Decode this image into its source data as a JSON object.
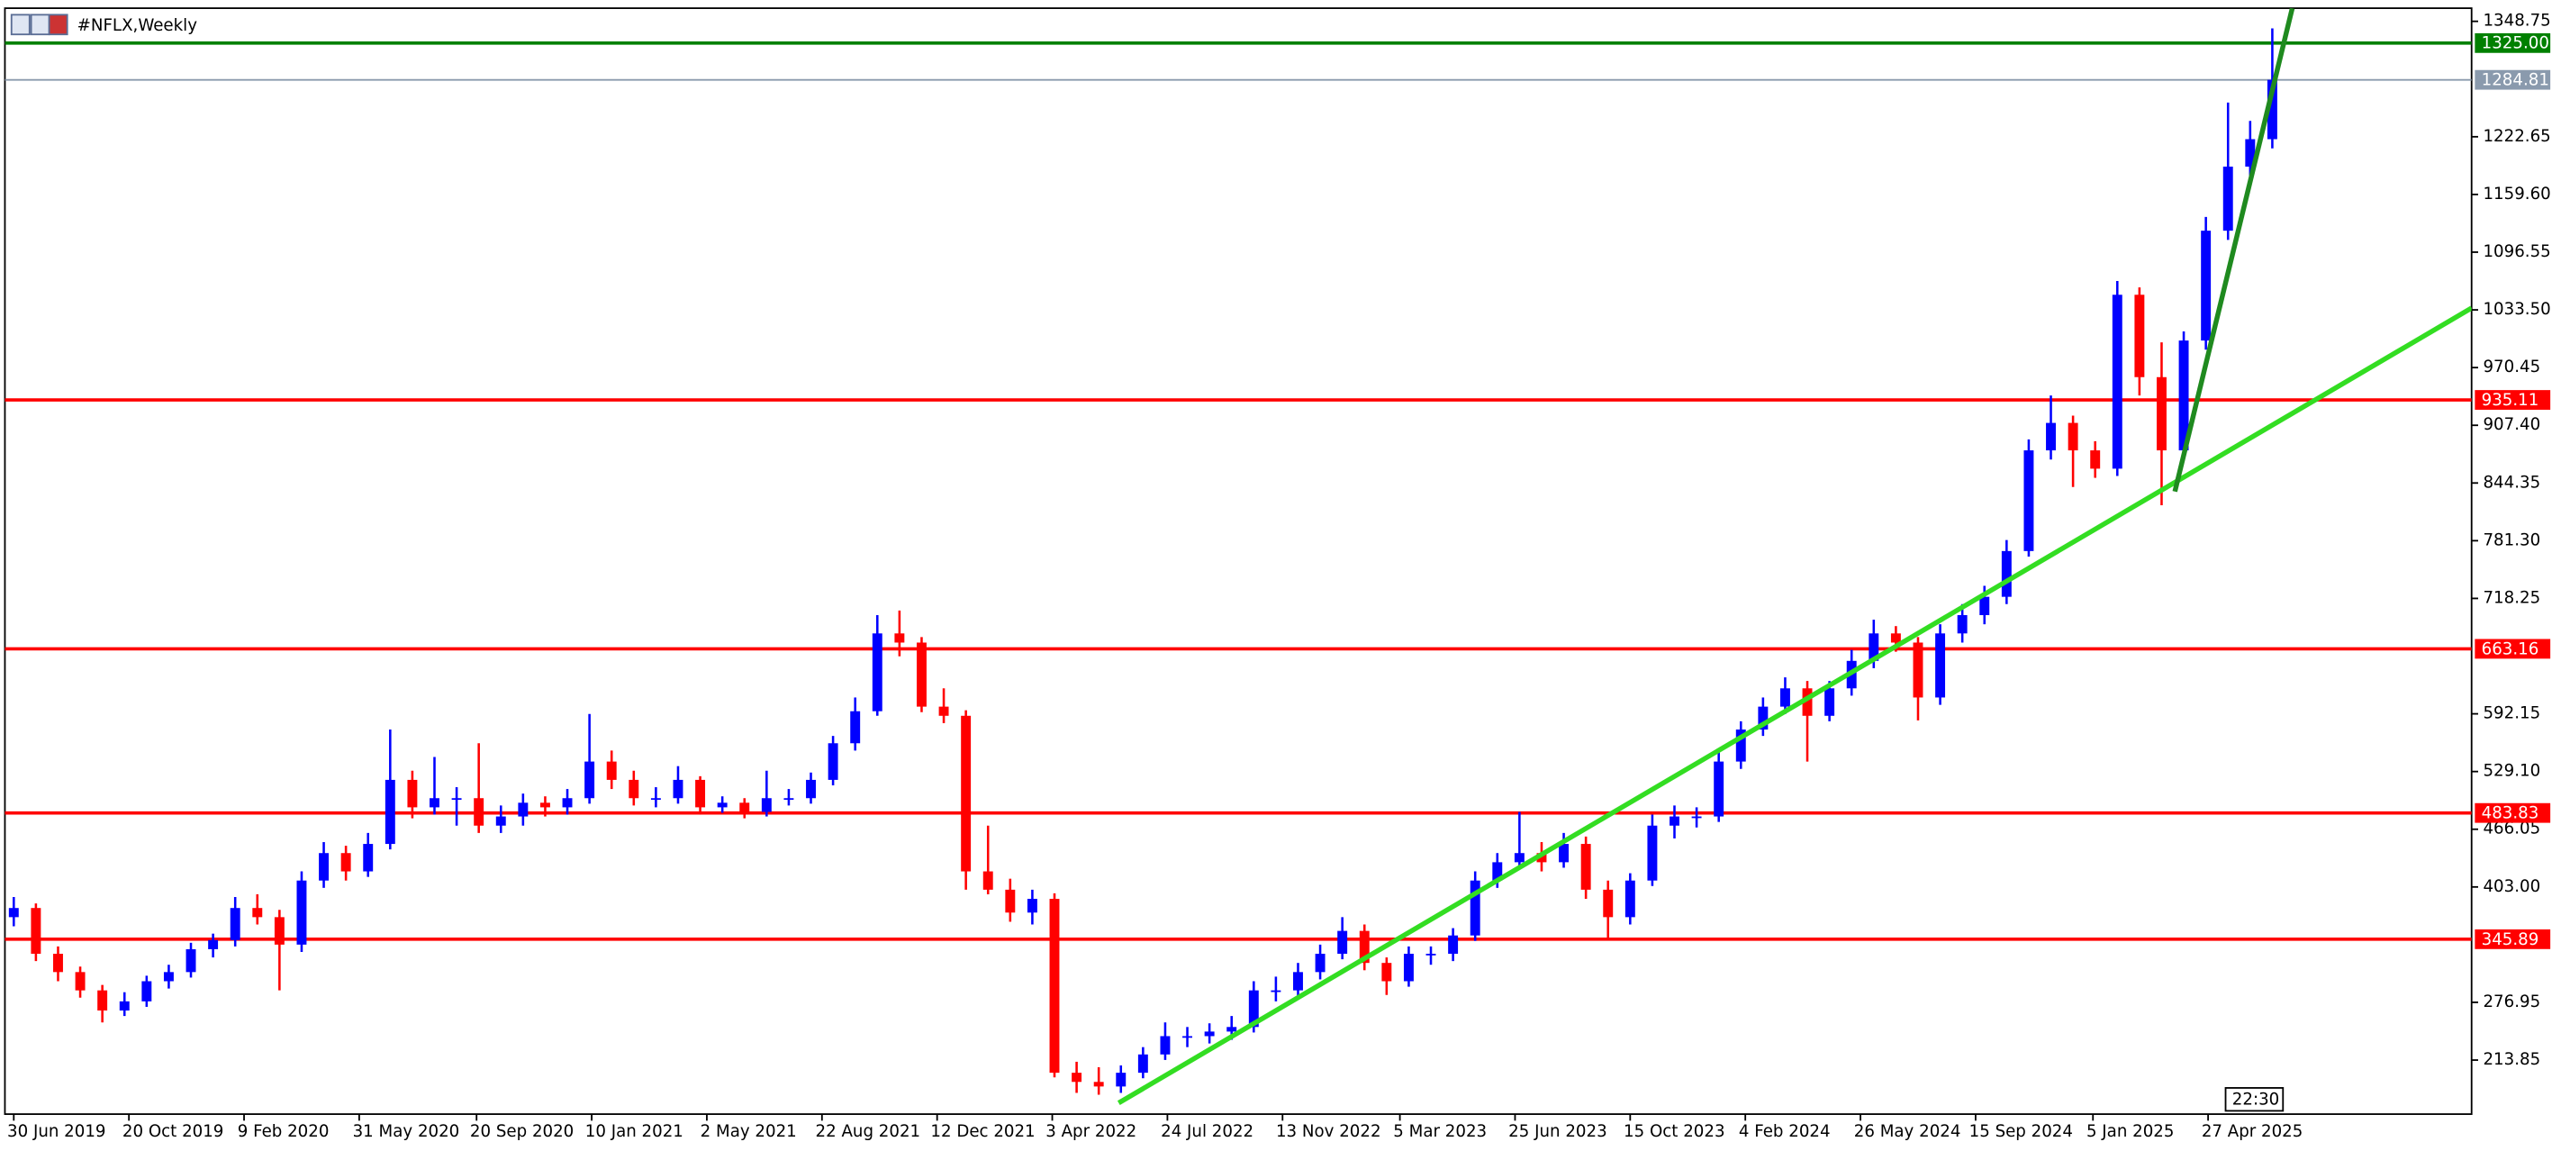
{
  "header": {
    "symbol": "#NFLX,Weekly"
  },
  "chart_data": {
    "type": "candlestick",
    "up_color": "#0000ff",
    "down_color": "#ff0000",
    "xlim": [
      -0.4,
      111
    ],
    "ylim": [
      154.8,
      1363.1
    ],
    "yticks": [
      1348.75,
      1222.65,
      {
        "value": 1159.6,
        "label": "1159.60"
      },
      1096.55,
      {
        "value": 1033.5,
        "label": "1033.50"
      },
      970.45,
      {
        "value": 907.4,
        "label": "907.40"
      },
      844.35,
      {
        "value": 781.3,
        "label": "781.30"
      },
      718.25,
      592.15,
      {
        "value": 529.1,
        "label": "529.10"
      },
      466.05,
      {
        "value": 403,
        "label": "403.00"
      },
      276.95,
      213.85
    ],
    "xticks": [
      {
        "value": 0,
        "label": "30 Jun 2019"
      },
      {
        "value": 5.2,
        "label": "20 Oct 2019"
      },
      {
        "value": 10.4,
        "label": "9 Feb 2020"
      },
      {
        "value": 15.6,
        "label": "31 May 2020"
      },
      {
        "value": 20.9,
        "label": "20 Sep 2020"
      },
      {
        "value": 26.1,
        "label": "10 Jan 2021"
      },
      {
        "value": 31.3,
        "label": "2 May 2021"
      },
      {
        "value": 36.5,
        "label": "22 Aug 2021"
      },
      {
        "value": 41.7,
        "label": "12 Dec 2021"
      },
      {
        "value": 46.9,
        "label": "3 Apr 2022"
      },
      {
        "value": 52.1,
        "label": "24 Jul 2022"
      },
      {
        "value": 57.3,
        "label": "13 Nov 2022"
      },
      {
        "value": 62.6,
        "label": "5 Mar 2023"
      },
      {
        "value": 67.8,
        "label": "25 Jun 2023"
      },
      {
        "value": 73,
        "label": "15 Oct 2023"
      },
      {
        "value": 78.2,
        "label": "4 Feb 2024"
      },
      {
        "value": 83.4,
        "label": "26 May 2024"
      },
      {
        "value": 88.6,
        "label": "15 Sep 2024"
      },
      {
        "value": 93.9,
        "label": "5 Jan 2025"
      },
      {
        "value": 99.1,
        "label": "27 Apr 2025"
      }
    ],
    "levels": [
      {
        "value": 1325,
        "label": "1325.00",
        "color": "#008000"
      },
      {
        "value": 1284.81,
        "color": "#8a9aad"
      },
      {
        "value": 935.11,
        "color": "#ff0000"
      },
      {
        "value": 663.16,
        "color": "#ff0000"
      },
      {
        "value": 483.83,
        "color": "#ff0000"
      },
      {
        "value": 345.89,
        "color": "#ff0000"
      }
    ],
    "trendlines": [
      {
        "x": [
          49.9,
          111
        ],
        "y": [
          167,
          1035.5
        ],
        "color": "#33dd22"
      },
      {
        "x": [
          97.6,
          102.9
        ],
        "y": [
          835,
          1363
        ],
        "color": "#1f8a1f"
      }
    ],
    "time_marker": "22:30",
    "candles": [
      [
        370,
        392,
        360,
        380
      ],
      [
        380,
        385,
        322,
        330
      ],
      [
        330,
        338,
        300,
        310
      ],
      [
        310,
        316,
        282,
        290
      ],
      [
        290,
        296,
        255,
        268
      ],
      [
        268,
        288,
        262,
        278
      ],
      [
        278,
        306,
        272,
        300
      ],
      [
        300,
        318,
        292,
        310
      ],
      [
        310,
        342,
        304,
        335
      ],
      [
        335,
        352,
        326,
        345
      ],
      [
        345,
        392,
        338,
        380
      ],
      [
        380,
        395,
        362,
        370
      ],
      [
        370,
        378,
        290,
        340
      ],
      [
        340,
        420,
        332,
        410
      ],
      [
        410,
        452,
        402,
        440
      ],
      [
        440,
        448,
        410,
        420
      ],
      [
        420,
        462,
        414,
        450
      ],
      [
        450,
        575,
        444,
        520
      ],
      [
        520,
        530,
        478,
        490
      ],
      [
        490,
        545,
        482,
        500
      ],
      [
        500,
        512,
        470,
        500
      ],
      [
        500,
        560,
        462,
        470
      ],
      [
        470,
        492,
        462,
        480
      ],
      [
        480,
        505,
        470,
        495
      ],
      [
        495,
        502,
        480,
        490
      ],
      [
        490,
        510,
        482,
        500
      ],
      [
        500,
        592,
        494,
        540
      ],
      [
        540,
        552,
        510,
        520
      ],
      [
        520,
        530,
        492,
        500
      ],
      [
        500,
        512,
        490,
        500
      ],
      [
        500,
        535,
        494,
        520
      ],
      [
        520,
        524,
        482,
        490
      ],
      [
        490,
        502,
        484,
        495
      ],
      [
        495,
        500,
        478,
        485
      ],
      [
        485,
        530,
        480,
        500
      ],
      [
        500,
        510,
        492,
        500
      ],
      [
        500,
        528,
        494,
        520
      ],
      [
        520,
        568,
        514,
        560
      ],
      [
        560,
        610,
        552,
        595
      ],
      [
        595,
        700,
        590,
        680
      ],
      [
        680,
        705,
        655,
        670
      ],
      [
        670,
        676,
        594,
        600
      ],
      [
        600,
        620,
        582,
        590
      ],
      [
        590,
        596,
        400,
        420
      ],
      [
        420,
        470,
        395,
        400
      ],
      [
        400,
        412,
        365,
        375
      ],
      [
        375,
        400,
        362,
        390
      ],
      [
        390,
        396,
        195,
        200
      ],
      [
        200,
        212,
        178,
        190
      ],
      [
        190,
        206,
        176,
        185
      ],
      [
        185,
        208,
        178,
        200
      ],
      [
        200,
        228,
        194,
        220
      ],
      [
        220,
        255,
        214,
        240
      ],
      [
        240,
        250,
        228,
        240
      ],
      [
        240,
        254,
        232,
        245
      ],
      [
        245,
        262,
        236,
        250
      ],
      [
        250,
        300,
        244,
        290
      ],
      [
        290,
        305,
        278,
        290
      ],
      [
        290,
        320,
        284,
        310
      ],
      [
        310,
        340,
        302,
        330
      ],
      [
        330,
        370,
        324,
        355
      ],
      [
        355,
        362,
        312,
        320
      ],
      [
        320,
        326,
        285,
        300
      ],
      [
        300,
        338,
        294,
        330
      ],
      [
        330,
        338,
        318,
        330
      ],
      [
        330,
        358,
        322,
        350
      ],
      [
        350,
        420,
        344,
        410
      ],
      [
        410,
        440,
        402,
        430
      ],
      [
        430,
        485,
        424,
        440
      ],
      [
        440,
        452,
        420,
        430
      ],
      [
        430,
        462,
        424,
        450
      ],
      [
        450,
        458,
        390,
        400
      ],
      [
        400,
        410,
        345,
        370
      ],
      [
        370,
        418,
        362,
        410
      ],
      [
        410,
        482,
        404,
        470
      ],
      [
        470,
        492,
        456,
        480
      ],
      [
        480,
        490,
        468,
        480
      ],
      [
        480,
        550,
        474,
        540
      ],
      [
        540,
        584,
        532,
        575
      ],
      [
        575,
        610,
        568,
        600
      ],
      [
        600,
        632,
        592,
        620
      ],
      [
        620,
        628,
        540,
        590
      ],
      [
        590,
        628,
        584,
        620
      ],
      [
        620,
        662,
        612,
        650
      ],
      [
        650,
        695,
        642,
        680
      ],
      [
        680,
        688,
        660,
        670
      ],
      [
        670,
        676,
        585,
        610
      ],
      [
        610,
        690,
        602,
        680
      ],
      [
        680,
        712,
        670,
        700
      ],
      [
        700,
        732,
        690,
        720
      ],
      [
        720,
        782,
        712,
        770
      ],
      [
        770,
        892,
        764,
        880
      ],
      [
        880,
        940,
        870,
        910
      ],
      [
        910,
        918,
        840,
        880
      ],
      [
        880,
        890,
        850,
        860
      ],
      [
        860,
        1065,
        852,
        1050
      ],
      [
        1050,
        1058,
        940,
        960
      ],
      [
        960,
        998,
        820,
        880
      ],
      [
        880,
        1010,
        872,
        1000
      ],
      [
        1000,
        1135,
        990,
        1120
      ],
      [
        1120,
        1260,
        1110,
        1190
      ],
      [
        1190,
        1240,
        1175,
        1220
      ],
      [
        1220,
        1341,
        1210,
        1284.81
      ]
    ]
  }
}
